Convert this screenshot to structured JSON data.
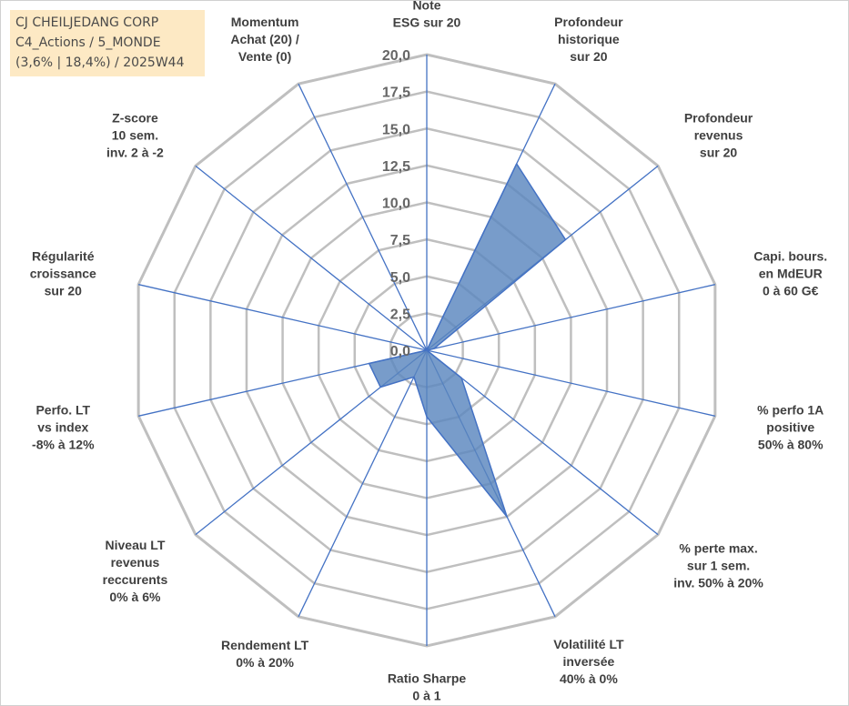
{
  "title_box": {
    "line1": "CJ CHEILJEDANG CORP",
    "line2": "C4_Actions / 5_MONDE",
    "line3": "(3,6% | 18,4%) / 2025W44"
  },
  "chart_data": {
    "type": "radar",
    "title": "",
    "rlim": [
      0,
      20
    ],
    "tick_values": [
      0,
      2.5,
      5,
      7.5,
      10,
      12.5,
      15,
      17.5,
      20
    ],
    "tick_labels": [
      "0,0",
      "2,5",
      "5,0",
      "7,5",
      "10,0",
      "12,5",
      "15,0",
      "17,5",
      "20,0"
    ],
    "grid": true,
    "categories": [
      [
        "Note",
        "ESG sur 20"
      ],
      [
        "Profondeur",
        "historique",
        "sur 20"
      ],
      [
        "Profondeur",
        "revenus",
        "sur 20"
      ],
      [
        "Capi. bours.",
        "en MdEUR",
        "0 à 60 G€"
      ],
      [
        "% perfo 1A",
        "positive",
        "50% à 80%"
      ],
      [
        "% perte max.",
        "sur 1 sem.",
        "inv. 50% à 20%"
      ],
      [
        "Volatilité LT",
        "inversée",
        "40% à 0%"
      ],
      [
        "Ratio Sharpe",
        "0 à 1"
      ],
      [
        "Rendement LT",
        "0% à 20%"
      ],
      [
        "Niveau LT",
        "revenus",
        "reccurents",
        "0% à 6%"
      ],
      [
        "Perfo. LT",
        "vs index",
        "-8% à 12%"
      ],
      [
        "Régularité",
        "croissance",
        "sur 20"
      ],
      [
        "Z-score",
        "10 sem.",
        "inv. 2 à -2"
      ],
      [
        "Momentum",
        "Achat (20) /",
        "Vente (0)"
      ]
    ],
    "series": [
      {
        "values": [
          0,
          14,
          12,
          0.5,
          0,
          3,
          12.5,
          4.5,
          2,
          4,
          4,
          0,
          0,
          0
        ],
        "fill": "#5a86be",
        "line": "#4472c4"
      }
    ],
    "colors": {
      "grid": "#bfbfbf",
      "spoke": "#4472c4",
      "label": "#404040",
      "tick": "#666666"
    }
  }
}
